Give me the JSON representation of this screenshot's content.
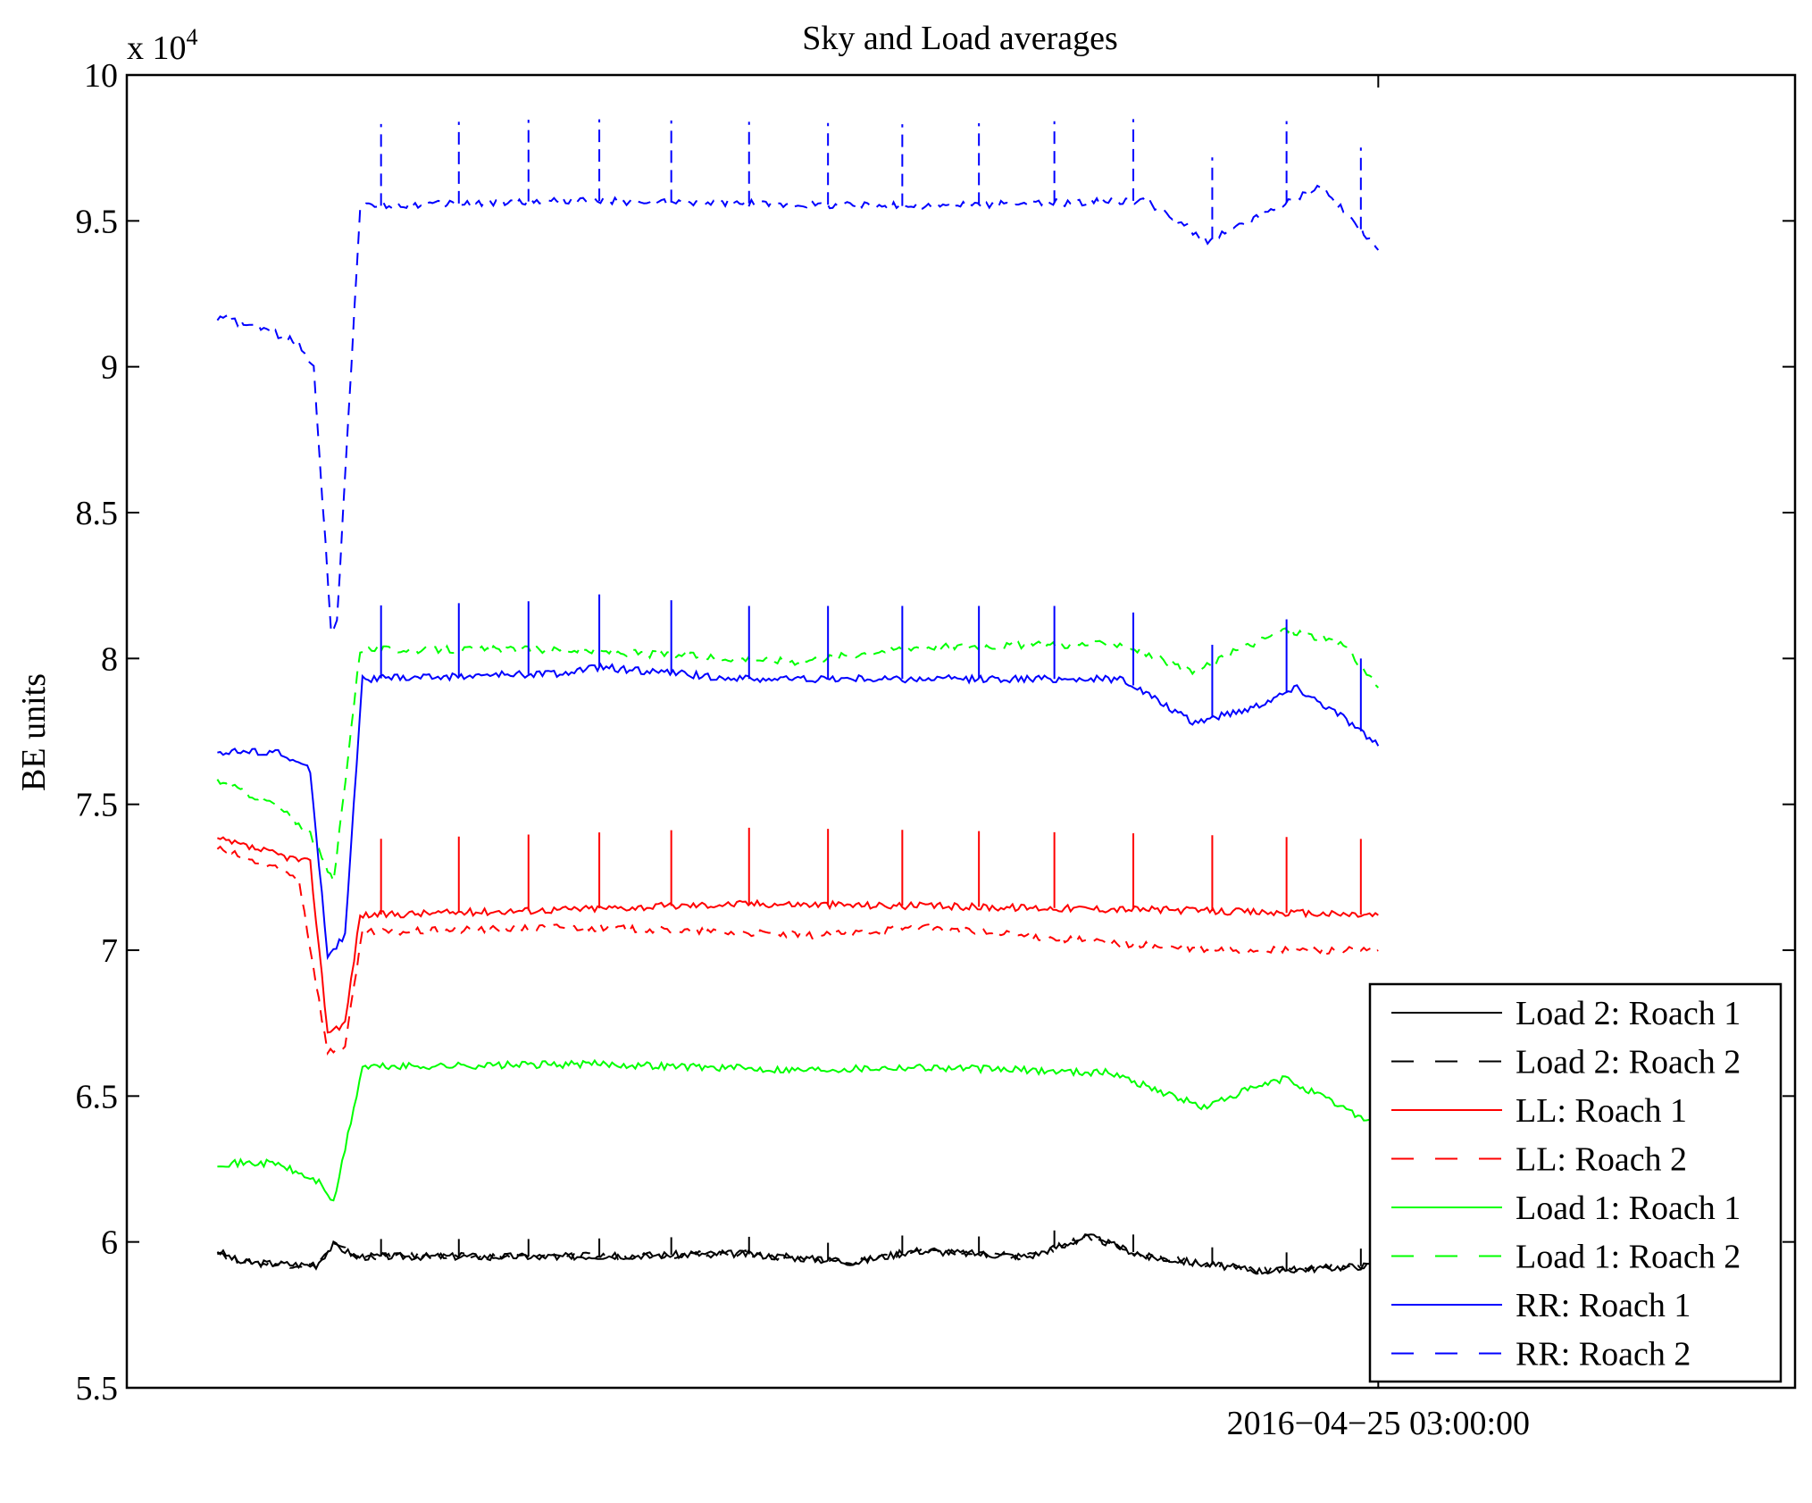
{
  "chart_data": {
    "type": "line",
    "title": "Sky and Load averages",
    "xlabel": "",
    "ylabel": "BE units",
    "y_multiplier": "x 10",
    "y_multiplier_exp": "4",
    "ylim": [
      5.5,
      10
    ],
    "yticks": [
      5.5,
      6,
      6.5,
      7,
      7.5,
      8,
      8.5,
      9,
      9.5,
      10
    ],
    "ytick_labels": [
      "5.5",
      "6",
      "6.5",
      "7",
      "7.5",
      "8",
      "8.5",
      "9",
      "9.5",
      "10"
    ],
    "xlim": [
      -7.8,
      135.9
    ],
    "xticks": [
      100
    ],
    "xtick_labels": [
      "2016−04−25 03:00:00"
    ],
    "x_note": "x is a relative time index; 100 corresponds to the 2016-04-25 03:00:00 tick",
    "grid": false,
    "legend_position": "bottom-right",
    "spike_x": [
      14.1,
      20.8,
      26.8,
      32.9,
      39.1,
      45.8,
      52.6,
      59,
      65.6,
      72.1,
      78.9,
      85.7,
      92.1,
      98.5
    ],
    "series": [
      {
        "name": "Load 2: Roach 1",
        "color": "#000000",
        "dash": false,
        "spike_height": 0.06,
        "x": [
          0,
          2,
          8.5,
          10,
          12,
          30,
          45,
          55,
          60,
          70,
          75,
          80,
          90,
          100
        ],
        "y": [
          5.97,
          5.93,
          5.92,
          5.99,
          5.95,
          5.95,
          5.96,
          5.93,
          5.97,
          5.95,
          6.02,
          5.95,
          5.9,
          5.92
        ]
      },
      {
        "name": "Load 2: Roach 2",
        "color": "#000000",
        "dash": true,
        "spike_height": 0,
        "x": [
          0,
          2,
          8.5,
          10,
          12,
          30,
          45,
          55,
          60,
          70,
          75,
          80,
          90,
          100
        ],
        "y": [
          5.97,
          5.93,
          5.92,
          5.99,
          5.95,
          5.95,
          5.96,
          5.93,
          5.97,
          5.95,
          6.02,
          5.95,
          5.9,
          5.92
        ]
      },
      {
        "name": "LL: Roach 1",
        "color": "#ff0000",
        "dash": false,
        "spike_height": 0.26,
        "x": [
          0,
          5,
          8,
          9.5,
          11,
          12.3,
          30,
          46,
          80,
          100
        ],
        "y": [
          7.38,
          7.33,
          7.3,
          6.72,
          6.75,
          7.12,
          7.14,
          7.16,
          7.14,
          7.12
        ]
      },
      {
        "name": "LL: Roach 2",
        "color": "#ff0000",
        "dash": true,
        "spike_height": 0,
        "x": [
          0,
          7,
          9.5,
          11,
          12.5,
          30,
          52,
          60,
          85,
          100
        ],
        "y": [
          7.35,
          7.25,
          6.65,
          6.67,
          7.06,
          7.08,
          7.05,
          7.08,
          7.0,
          7.0
        ]
      },
      {
        "name": "Load 1: Roach 1",
        "color": "#00ff00",
        "dash": false,
        "spike_height": 0,
        "x": [
          0,
          5,
          9,
          10,
          12.5,
          33,
          50,
          60,
          77,
          85,
          88,
          92,
          100
        ],
        "y": [
          6.27,
          6.27,
          6.2,
          6.13,
          6.6,
          6.61,
          6.59,
          6.6,
          6.58,
          6.46,
          6.51,
          6.56,
          6.4
        ]
      },
      {
        "name": "Load 1: Roach 2",
        "color": "#00ff00",
        "dash": true,
        "spike_height": 0,
        "x": [
          0,
          5,
          8,
          10,
          12.3,
          30,
          50,
          60,
          78,
          84,
          88,
          92,
          97,
          100
        ],
        "y": [
          7.58,
          7.5,
          7.4,
          7.23,
          8.03,
          8.03,
          7.99,
          8.04,
          8.05,
          7.95,
          8.03,
          8.1,
          8.05,
          7.9
        ]
      },
      {
        "name": "RR: Roach 1",
        "color": "#0000ff",
        "dash": false,
        "spike_height": 0.25,
        "x": [
          0,
          5,
          8,
          9.5,
          11,
          12.5,
          30,
          33,
          45,
          78,
          84,
          89,
          93,
          97,
          100
        ],
        "y": [
          7.68,
          7.68,
          7.62,
          6.98,
          7.05,
          7.93,
          7.95,
          7.97,
          7.93,
          7.93,
          7.78,
          7.83,
          7.9,
          7.8,
          7.7
        ]
      },
      {
        "name": "RR: Roach 2",
        "color": "#0000ff",
        "dash": true,
        "spike_height": 0.28,
        "x": [
          0,
          4,
          7,
          8.3,
          9.8,
          10.3,
          12.3,
          30,
          61,
          80,
          85.3,
          90,
          95,
          99,
          100
        ],
        "y": [
          9.17,
          9.13,
          9.08,
          9.0,
          8.1,
          8.12,
          9.55,
          9.57,
          9.55,
          9.57,
          9.43,
          9.52,
          9.62,
          9.45,
          9.4
        ]
      }
    ]
  }
}
